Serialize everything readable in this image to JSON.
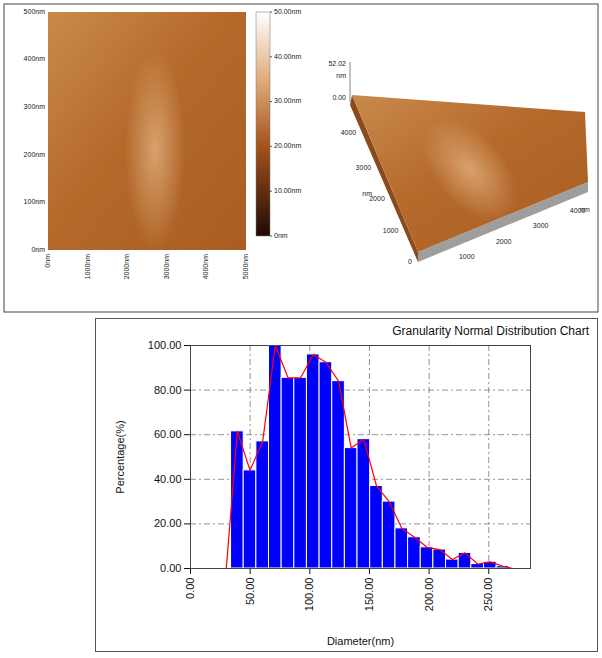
{
  "afm": {
    "image_2d": {
      "x_ticks": [
        "0nm",
        "1000nm",
        "2000nm",
        "3000nm",
        "4000nm",
        "5000nm"
      ],
      "y_ticks": [
        "0nm",
        "100nm",
        "200nm",
        "300nm",
        "400nm",
        "500nm"
      ]
    },
    "color_bar": {
      "range": [
        0,
        50
      ],
      "ticks": [
        {
          "value": 0,
          "label": "0nm"
        },
        {
          "value": 10,
          "label": "10.00nm"
        },
        {
          "value": 20,
          "label": "20.00nm"
        },
        {
          "value": 30,
          "label": "30.00nm"
        },
        {
          "value": 40,
          "label": "40.00nm"
        },
        {
          "value": 50,
          "label": "50.00nm"
        }
      ]
    },
    "image_3d": {
      "z_max_label": "52.02",
      "z_unit": "nm",
      "z_min_label": "0.00",
      "y_ticks": [
        "4000",
        "3000",
        "2000",
        "1000",
        "0"
      ],
      "y_unit": "nm",
      "x_ticks": [
        "1000",
        "2000",
        "3000",
        "4000"
      ],
      "x_unit": "nm"
    }
  },
  "chart_data": {
    "type": "histogram",
    "title": "Granularity Normal Distribution Chart",
    "x_label": "Diameter(nm)",
    "y_label": "Percentage(%)",
    "bins": [
      34,
      44.6,
      55.2,
      65.8,
      76.4,
      87,
      97.6,
      108.2,
      118.8,
      129.4,
      140,
      150.6,
      161.2,
      171.8,
      182.4,
      193,
      203.6,
      214.2,
      224.8,
      235.4,
      246,
      256.6,
      267.2
    ],
    "values": [
      61.5,
      44,
      57,
      100,
      85.5,
      85.5,
      96,
      92.5,
      84,
      54,
      58,
      37,
      30,
      18,
      14,
      9.5,
      8.5,
      4,
      7,
      2,
      3,
      1
    ],
    "color": "#0000ff",
    "overlay": {
      "type": "line",
      "color": "#ff0000",
      "x": [
        0,
        30,
        39.3,
        49.9,
        60.5,
        71.1,
        81.7,
        92.3,
        102.9,
        113.5,
        124.1,
        134.7,
        145.3,
        155.9,
        166.5,
        177.1,
        187.7,
        198.3,
        208.9,
        219.5,
        230.1,
        240.7,
        251.3,
        261.9,
        270,
        285
      ],
      "values": [
        0,
        0,
        61.5,
        44,
        57,
        100,
        85.5,
        85.5,
        96,
        92.5,
        84,
        54,
        58,
        37,
        30,
        18,
        14,
        9.5,
        8.5,
        4,
        7,
        2,
        3,
        1,
        0,
        0
      ]
    },
    "xlim": [
      0,
      285
    ],
    "ylim": [
      0,
      100
    ],
    "xticks": [
      {
        "value": 0,
        "label": "0.00"
      },
      {
        "value": 50,
        "label": "50.00"
      },
      {
        "value": 100,
        "label": "100.00"
      },
      {
        "value": 150,
        "label": "150.00"
      },
      {
        "value": 200,
        "label": "200.00"
      },
      {
        "value": 250,
        "label": "250.00"
      }
    ],
    "yticks": [
      {
        "value": 0,
        "label": "0.00"
      },
      {
        "value": 20,
        "label": "20.00"
      },
      {
        "value": 40,
        "label": "40.00"
      },
      {
        "value": 60,
        "label": "60.00"
      },
      {
        "value": 80,
        "label": "80.00"
      },
      {
        "value": 100,
        "label": "100.00"
      }
    ],
    "grid": true
  }
}
